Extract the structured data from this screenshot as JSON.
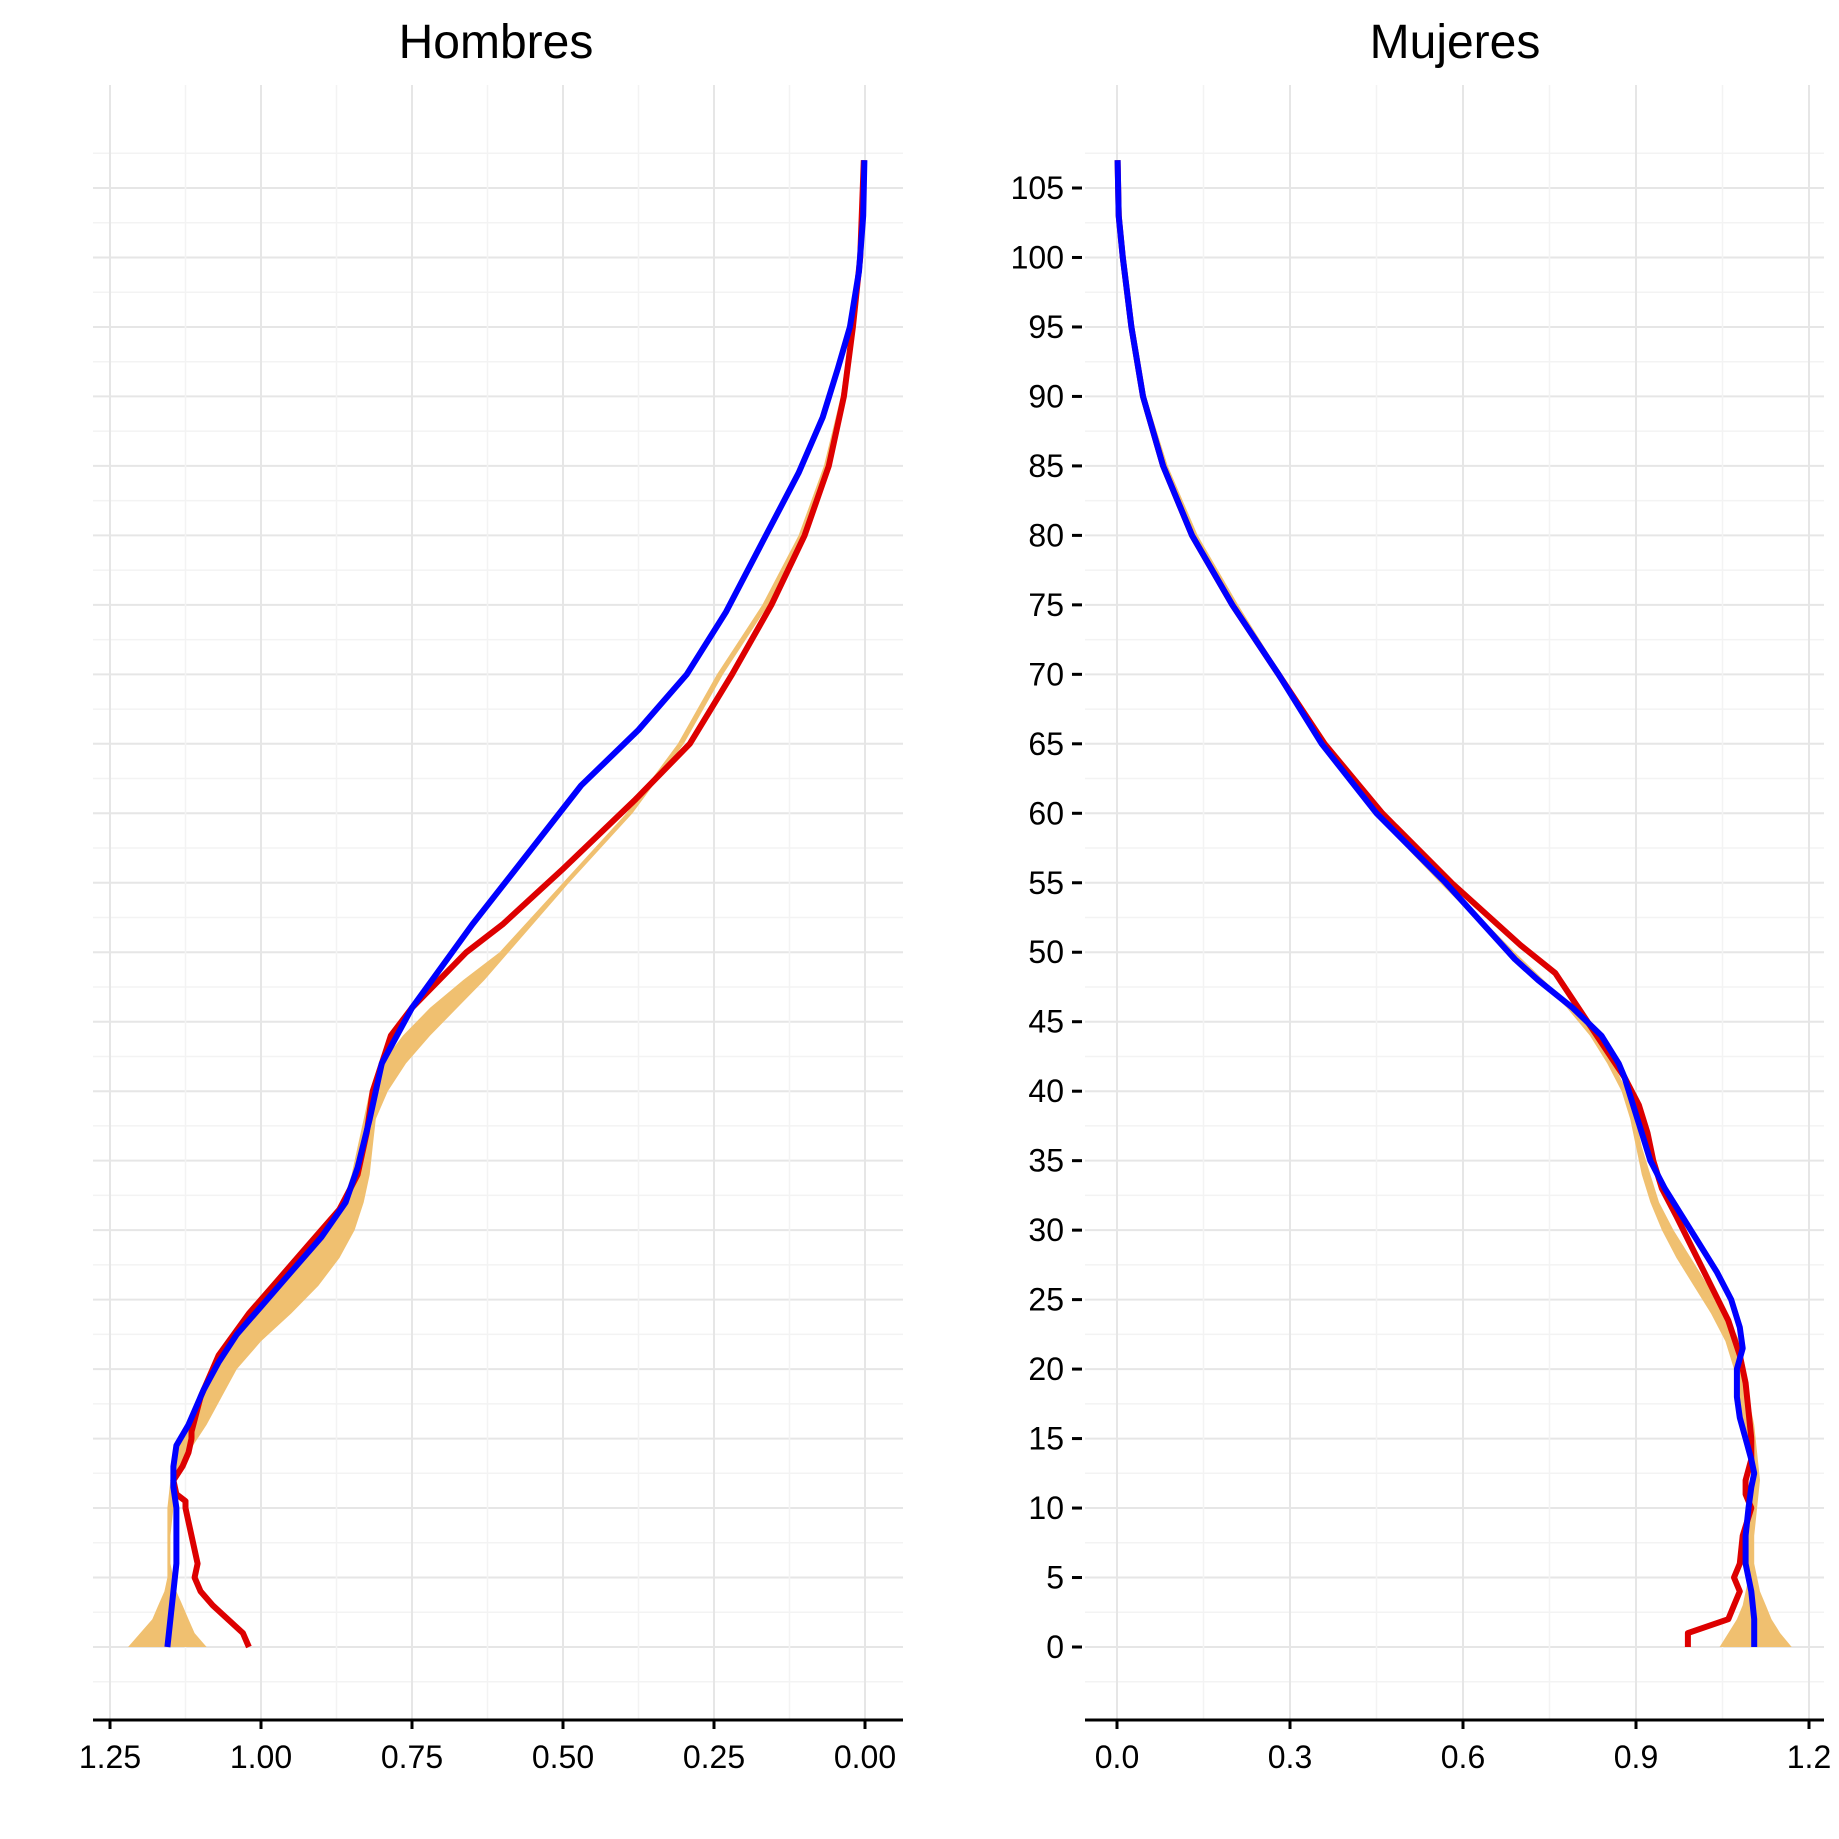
{
  "colors": {
    "band": "#f0c070",
    "observed": "#dd0000",
    "fitted": "#0000ff"
  },
  "chart_data": [
    {
      "type": "line",
      "title": "Hombres",
      "x_reversed": true,
      "xlim": [
        0,
        1.26
      ],
      "ylim": [
        -5,
        108
      ],
      "x_ticks": [
        "1.25",
        "1.00",
        "0.75",
        "0.50",
        "0.25",
        "0.00"
      ],
      "x_tick_values": [
        1.25,
        1.0,
        0.75,
        0.5,
        0.25,
        0.0
      ],
      "y_ticks": [],
      "series": [
        {
          "role": "band",
          "y": [
            0,
            1,
            2,
            3,
            4,
            5,
            6,
            8,
            10,
            12,
            14,
            16,
            18,
            20,
            22,
            24,
            26,
            28,
            30,
            32,
            34,
            36,
            38,
            40,
            42,
            44,
            46,
            48,
            50,
            55,
            60,
            65,
            70,
            75,
            80,
            85,
            90,
            95,
            100,
            107
          ],
          "lower": [
            1.09,
            1.11,
            1.12,
            1.13,
            1.14,
            1.145,
            1.15,
            1.15,
            1.145,
            1.14,
            1.12,
            1.09,
            1.065,
            1.04,
            1.0,
            0.95,
            0.905,
            0.87,
            0.845,
            0.83,
            0.82,
            0.815,
            0.81,
            0.79,
            0.76,
            0.72,
            0.675,
            0.63,
            0.59,
            0.49,
            0.385,
            0.3,
            0.235,
            0.16,
            0.1,
            0.06,
            0.035,
            0.02,
            0.008,
            0.002
          ],
          "upper": [
            1.22,
            1.2,
            1.18,
            1.17,
            1.16,
            1.155,
            1.155,
            1.155,
            1.155,
            1.15,
            1.14,
            1.12,
            1.1,
            1.08,
            1.05,
            1.01,
            0.97,
            0.93,
            0.89,
            0.865,
            0.85,
            0.84,
            0.83,
            0.82,
            0.8,
            0.765,
            0.72,
            0.665,
            0.605,
            0.5,
            0.395,
            0.31,
            0.245,
            0.17,
            0.11,
            0.068,
            0.04,
            0.024,
            0.01,
            0.003
          ]
        },
        {
          "role": "observed",
          "x": [
            1.02,
            1.03,
            1.08,
            1.1,
            1.11,
            1.105,
            1.12,
            1.125,
            1.125,
            1.14,
            1.145,
            1.13,
            1.12,
            1.115,
            1.115,
            1.1,
            1.07,
            1.02,
            0.97,
            0.92,
            0.87,
            0.84,
            0.825,
            0.815,
            0.8,
            0.785,
            0.75,
            0.705,
            0.66,
            0.6,
            0.5,
            0.38,
            0.29,
            0.22,
            0.155,
            0.1,
            0.06,
            0.035,
            0.02,
            0.008,
            0.002
          ],
          "y": [
            0,
            1,
            3,
            4,
            5,
            6,
            9,
            10,
            10.5,
            11,
            12,
            13,
            14,
            15,
            15.5,
            18,
            21,
            24,
            26.5,
            29,
            31.5,
            34,
            37,
            40,
            42,
            44,
            46,
            48,
            50,
            52,
            56,
            61,
            65,
            70,
            75,
            80,
            85,
            90,
            95,
            100,
            107
          ]
        },
        {
          "role": "fitted",
          "x": [
            1.155,
            1.15,
            1.145,
            1.14,
            1.14,
            1.14,
            1.145,
            1.145,
            1.14,
            1.12,
            1.095,
            1.07,
            1.04,
            1.0,
            0.95,
            0.9,
            0.86,
            0.84,
            0.82,
            0.8,
            0.75,
            0.65,
            0.56,
            0.47,
            0.375,
            0.295,
            0.23,
            0.17,
            0.11,
            0.07,
            0.045,
            0.025,
            0.01,
            0.003,
            0.001
          ],
          "y": [
            0,
            2,
            4,
            6,
            8,
            10,
            11.5,
            13,
            14.5,
            16,
            18.5,
            20.5,
            22.5,
            24.5,
            27,
            29.5,
            32,
            34.5,
            38,
            42,
            46,
            52,
            57,
            62,
            66,
            70,
            74.5,
            79.5,
            84.5,
            88.5,
            92,
            95,
            99,
            103,
            107
          ]
        }
      ]
    },
    {
      "type": "line",
      "title": "Mujeres",
      "x_reversed": false,
      "xlim": [
        -0.06,
        1.22
      ],
      "ylim": [
        -5,
        108
      ],
      "x_ticks": [
        "0.0",
        "0.3",
        "0.6",
        "0.9",
        "1.2"
      ],
      "x_tick_values": [
        0.0,
        0.3,
        0.6,
        0.9,
        1.2
      ],
      "y_ticks": [
        "0",
        "5",
        "10",
        "15",
        "20",
        "25",
        "30",
        "35",
        "40",
        "45",
        "50",
        "55",
        "60",
        "65",
        "70",
        "75",
        "80",
        "85",
        "90",
        "95",
        "100",
        "105"
      ],
      "y_tick_values": [
        0,
        5,
        10,
        15,
        20,
        25,
        30,
        35,
        40,
        45,
        50,
        55,
        60,
        65,
        70,
        75,
        80,
        85,
        90,
        95,
        100,
        105
      ],
      "series": [
        {
          "role": "band",
          "y": [
            0,
            1,
            2,
            3,
            4,
            5,
            6,
            8,
            10,
            12,
            14,
            16,
            18,
            20,
            22,
            24,
            26,
            28,
            30,
            32,
            34,
            36,
            38,
            40,
            42,
            44,
            46,
            48,
            50,
            55,
            60,
            65,
            70,
            75,
            80,
            85,
            90,
            95,
            100,
            107
          ],
          "lower": [
            1.045,
            1.06,
            1.075,
            1.085,
            1.09,
            1.095,
            1.095,
            1.095,
            1.1,
            1.1,
            1.095,
            1.085,
            1.075,
            1.07,
            1.055,
            1.03,
            1.0,
            0.97,
            0.945,
            0.925,
            0.91,
            0.9,
            0.89,
            0.875,
            0.85,
            0.82,
            0.78,
            0.73,
            0.68,
            0.56,
            0.445,
            0.35,
            0.275,
            0.2,
            0.13,
            0.08,
            0.045,
            0.025,
            0.01,
            0.003
          ],
          "upper": [
            1.17,
            1.15,
            1.135,
            1.125,
            1.115,
            1.11,
            1.105,
            1.105,
            1.11,
            1.115,
            1.11,
            1.105,
            1.095,
            1.09,
            1.08,
            1.055,
            1.025,
            0.995,
            0.965,
            0.94,
            0.925,
            0.91,
            0.9,
            0.885,
            0.86,
            0.83,
            0.79,
            0.74,
            0.69,
            0.57,
            0.455,
            0.36,
            0.285,
            0.21,
            0.14,
            0.088,
            0.05,
            0.028,
            0.012,
            0.004
          ]
        },
        {
          "role": "observed",
          "x": [
            0.99,
            0.99,
            1.06,
            1.07,
            1.08,
            1.07,
            1.08,
            1.085,
            1.1,
            1.09,
            1.09,
            1.1,
            1.1,
            1.095,
            1.09,
            1.08,
            1.06,
            1.03,
            1.0,
            0.97,
            0.945,
            0.93,
            0.92,
            0.905,
            0.88,
            0.84,
            0.8,
            0.76,
            0.7,
            0.58,
            0.46,
            0.36,
            0.28,
            0.2,
            0.13,
            0.08,
            0.045,
            0.025,
            0.01,
            0.003,
            0.001
          ],
          "y": [
            0,
            1,
            2,
            3,
            4,
            5,
            6,
            8,
            10,
            11,
            12,
            13.5,
            15,
            17,
            19,
            21,
            23.5,
            26,
            28.5,
            31,
            33,
            35,
            37,
            39,
            41,
            43.5,
            46,
            48.5,
            50.5,
            55,
            60,
            65,
            70,
            75,
            80,
            85,
            90,
            95,
            100,
            103,
            107
          ]
        },
        {
          "role": "fitted",
          "x": [
            1.105,
            1.105,
            1.1,
            1.09,
            1.09,
            1.095,
            1.1,
            1.105,
            1.1,
            1.09,
            1.08,
            1.075,
            1.075,
            1.085,
            1.08,
            1.065,
            1.04,
            1.01,
            0.98,
            0.95,
            0.925,
            0.91,
            0.895,
            0.88,
            0.87,
            0.84,
            0.79,
            0.73,
            0.69,
            0.57,
            0.45,
            0.355,
            0.28,
            0.2,
            0.13,
            0.08,
            0.045,
            0.025,
            0.01,
            0.003,
            0.001
          ],
          "y": [
            0,
            2,
            4,
            6,
            8,
            10,
            11.5,
            12.5,
            13.5,
            15,
            16.5,
            18,
            20,
            21.5,
            23,
            25,
            27,
            29,
            31,
            33,
            35,
            37,
            39,
            41,
            42,
            44,
            46,
            48,
            49.5,
            55,
            60,
            65,
            70,
            75,
            80,
            85,
            90,
            95,
            100,
            103,
            107
          ]
        }
      ]
    }
  ]
}
